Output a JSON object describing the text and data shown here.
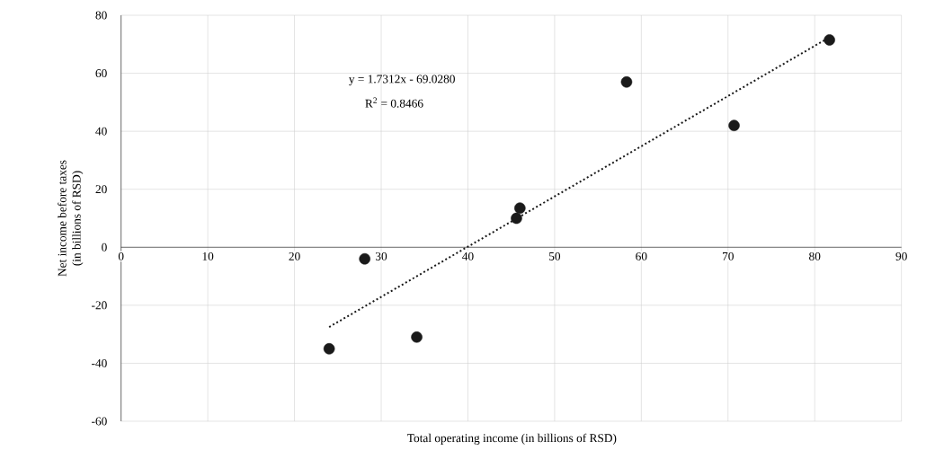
{
  "chart_data": {
    "type": "scatter",
    "xlabel": "Total operating income (in billions of RSD)",
    "ylabel": "Net income before taxes\n(in billions of RSD)",
    "series": [
      {
        "color": "#1a1a1a",
        "x": [
          24.0,
          28.1,
          34.1,
          45.6,
          46.0,
          58.3,
          70.7,
          81.7
        ],
        "values": [
          -35,
          -4,
          -31,
          10,
          13.5,
          57,
          42,
          71.5
        ],
        "marker": "circle"
      },
      {
        "type": "line",
        "color": "#1a1a1a",
        "line_style": "dotted",
        "marker": "none",
        "x": [
          24.0,
          81.7
        ],
        "values": [
          -27.5,
          72.4
        ]
      }
    ],
    "annotations": [
      "y = 1.7312x - 69.0280",
      "R$^{2}$ = 0.8466"
    ],
    "xlim": [
      0,
      90
    ],
    "ylim": [
      -60,
      80
    ],
    "xticks": [
      0,
      10,
      20,
      30,
      40,
      50,
      60,
      70,
      80,
      90
    ],
    "yticks": [
      -60,
      -40,
      -20,
      0,
      20,
      40,
      60,
      80
    ],
    "grid": true
  }
}
